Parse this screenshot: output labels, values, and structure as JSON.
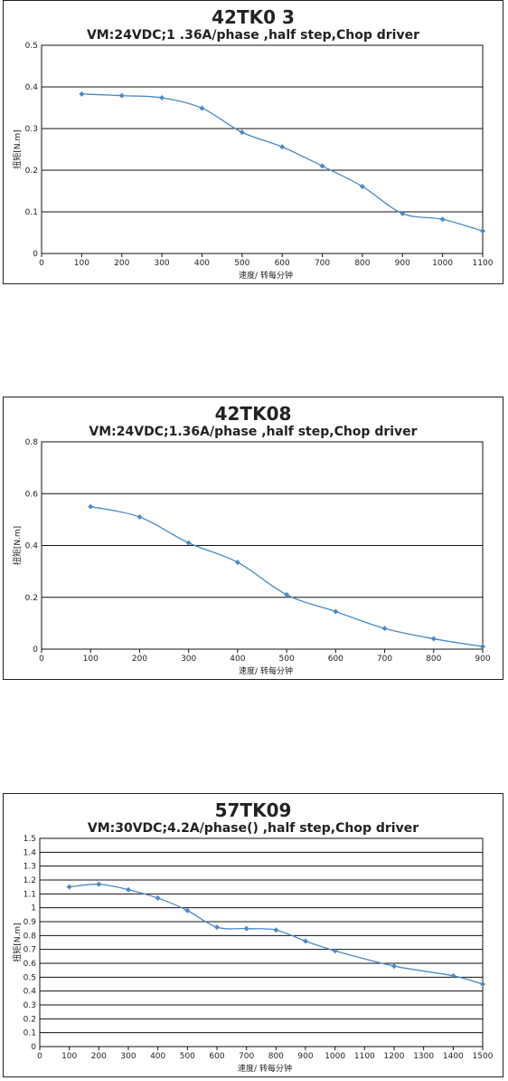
{
  "chart_data": [
    {
      "type": "line",
      "title": "42TK0 3",
      "subtitle": "VM:24VDC;1 .36A/phase ,half step,Chop driver",
      "xlabel": "速度/ 转每分钟",
      "ylabel": "扭矩[N.m]",
      "xlim": [
        0,
        1100
      ],
      "ylim": [
        0,
        0.5
      ],
      "xticks": [
        "0",
        "100",
        "200",
        "300",
        "400",
        "500",
        "600",
        "700",
        "800",
        "900",
        "1000",
        "1100"
      ],
      "yticks": [
        "0",
        "0.1",
        "0.2",
        "0.3",
        "0.4",
        "0.5"
      ],
      "grid": "horizontal",
      "series_color": "#4a8ac7",
      "x": [
        100,
        200,
        300,
        400,
        500,
        600,
        700,
        800,
        900,
        1000,
        1100
      ],
      "values": [
        0.383,
        0.379,
        0.374,
        0.349,
        0.291,
        0.256,
        0.21,
        0.161,
        0.096,
        0.082,
        0.054
      ]
    },
    {
      "type": "line",
      "title": "42TK08",
      "subtitle": "VM:24VDC;1.36A/phase ,half step,Chop driver",
      "xlabel": "速度/ 转每分钟",
      "ylabel": "扭矩[N.m]",
      "xlim": [
        0,
        900
      ],
      "ylim": [
        0,
        0.8
      ],
      "xticks": [
        "0",
        "100",
        "200",
        "300",
        "400",
        "500",
        "600",
        "700",
        "800",
        "900"
      ],
      "yticks": [
        "0",
        "0.2",
        "0.4",
        "0.6",
        "0.8"
      ],
      "grid": "horizontal",
      "series_color": "#4a8ac7",
      "x": [
        100,
        200,
        300,
        400,
        500,
        600,
        700,
        800,
        900
      ],
      "values": [
        0.55,
        0.51,
        0.41,
        0.335,
        0.21,
        0.145,
        0.08,
        0.04,
        0.01
      ]
    },
    {
      "type": "line",
      "title": "57TK09",
      "subtitle": "VM:30VDC;4.2A/phase() ,half step,Chop driver",
      "xlabel": "速度/ 转每分钟",
      "ylabel": "扭矩[N.m]",
      "xlim": [
        0,
        1500
      ],
      "ylim": [
        0,
        1.5
      ],
      "xticks": [
        "0",
        "100",
        "200",
        "300",
        "400",
        "500",
        "600",
        "700",
        "800",
        "900",
        "1000",
        "1100",
        "1200",
        "1300",
        "1400",
        "1500"
      ],
      "yticks": [
        "0",
        "0.1",
        "0.2",
        "0.3",
        "0.4",
        "0.5",
        "0.6",
        "0.7",
        "0.8",
        "0.9",
        "1",
        "1.1",
        "1.2",
        "1.3",
        "1.4",
        "1.5"
      ],
      "grid": "horizontal",
      "series_color": "#4a8ac7",
      "x": [
        100,
        200,
        300,
        400,
        500,
        600,
        700,
        800,
        900,
        1000,
        1200,
        1400,
        1500
      ],
      "values": [
        1.15,
        1.17,
        1.13,
        1.07,
        0.98,
        0.86,
        0.85,
        0.84,
        0.76,
        0.69,
        0.58,
        0.51,
        0.45
      ]
    }
  ]
}
